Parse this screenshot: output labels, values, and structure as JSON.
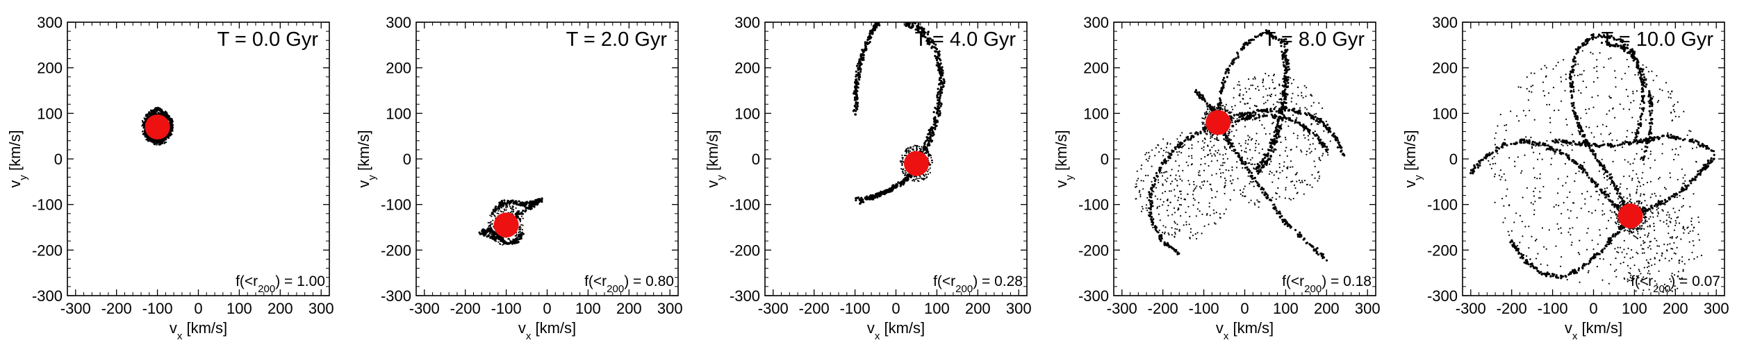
{
  "chart_data": [
    {
      "type": "scatter",
      "time_label": "T = 0.0 Gyr",
      "fraction_prefix": "f(<r",
      "fraction_sub": "200",
      "fraction_suffix": ") = 1.00",
      "xlabel": "v",
      "xlabel_sub": "x",
      "xlabel_unit": "[km/s]",
      "ylabel": "v",
      "ylabel_sub": "y",
      "ylabel_unit": "[km/s]",
      "xlim": [
        -320,
        320
      ],
      "ylim": [
        -300,
        300
      ],
      "ticks": [
        -300,
        -200,
        -100,
        0,
        100,
        200,
        300
      ],
      "ticklabels": [
        "-300",
        "-200",
        "-100",
        "0",
        "100",
        "200",
        "300"
      ],
      "satellite": {
        "x": -100,
        "y": 70,
        "color": "#ee1111"
      },
      "stream": {
        "paths": [
          [
            [
              -100,
              110
            ],
            [
              -80,
              100
            ],
            [
              -65,
              80
            ],
            [
              -70,
              55
            ],
            [
              -90,
              40
            ],
            [
              -115,
              40
            ],
            [
              -130,
              55
            ],
            [
              -130,
              80
            ],
            [
              -115,
              100
            ],
            [
              -100,
              110
            ]
          ],
          [
            [
              -110,
              100
            ],
            [
              -85,
              95
            ],
            [
              -70,
              70
            ],
            [
              -75,
              50
            ],
            [
              -95,
              35
            ],
            [
              -120,
              45
            ],
            [
              -125,
              70
            ],
            [
              -110,
              100
            ]
          ]
        ],
        "cloud": [
          [
            -100,
            70,
            40,
            300
          ]
        ]
      }
    },
    {
      "type": "scatter",
      "time_label": "T = 2.0 Gyr",
      "fraction_prefix": "f(<r",
      "fraction_sub": "200",
      "fraction_suffix": ") = 0.80",
      "xlabel": "v",
      "xlabel_sub": "x",
      "xlabel_unit": "[km/s]",
      "ylabel": "v",
      "ylabel_sub": "y",
      "ylabel_unit": "[km/s]",
      "xlim": [
        -320,
        320
      ],
      "ylim": [
        -300,
        300
      ],
      "ticks": [
        -300,
        -200,
        -100,
        0,
        100,
        200,
        300
      ],
      "ticklabels": [
        "-300",
        "-200",
        "-100",
        "0",
        "100",
        "200",
        "300"
      ],
      "satellite": {
        "x": -100,
        "y": -145,
        "color": "#ee1111"
      },
      "stream": {
        "paths": [
          [
            [
              -135,
              -120
            ],
            [
              -110,
              -95
            ],
            [
              -80,
              -95
            ],
            [
              -55,
              -100
            ],
            [
              -30,
              -95
            ],
            [
              -15,
              -90
            ],
            [
              -40,
              -105
            ],
            [
              -70,
              -120
            ],
            [
              -90,
              -140
            ],
            [
              -105,
              -165
            ],
            [
              -130,
              -175
            ],
            [
              -165,
              -160
            ],
            [
              -140,
              -155
            ],
            [
              -120,
              -170
            ],
            [
              -100,
              -185
            ],
            [
              -75,
              -180
            ],
            [
              -60,
              -165
            ]
          ]
        ],
        "cloud": [
          [
            -100,
            -145,
            45,
            280
          ]
        ]
      }
    },
    {
      "type": "scatter",
      "time_label": "T = 4.0 Gyr",
      "fraction_prefix": "f(<r",
      "fraction_sub": "200",
      "fraction_suffix": ") = 0.28",
      "xlabel": "v",
      "xlabel_sub": "x",
      "xlabel_unit": "[km/s]",
      "ylabel": "v",
      "ylabel_sub": "y",
      "ylabel_unit": "[km/s]",
      "xlim": [
        -320,
        320
      ],
      "ylim": [
        -300,
        300
      ],
      "ticks": [
        -300,
        -200,
        -100,
        0,
        100,
        200,
        300
      ],
      "ticklabels": [
        "-300",
        "-200",
        "-100",
        "0",
        "100",
        "200",
        "300"
      ],
      "satellite": {
        "x": 50,
        "y": -10,
        "color": "#ee1111"
      },
      "stream": {
        "paths": [
          [
            [
              -95,
              110
            ],
            [
              -100,
              150
            ],
            [
              -90,
              210
            ],
            [
              -70,
              260
            ],
            [
              -45,
              300
            ]
          ],
          [
            [
              -100,
              100
            ],
            [
              -95,
              170
            ],
            [
              -80,
              230
            ],
            [
              -55,
              285
            ],
            [
              -35,
              305
            ]
          ],
          [
            [
              20,
              300
            ],
            [
              60,
              280
            ],
            [
              95,
              240
            ],
            [
              110,
              180
            ],
            [
              100,
              110
            ],
            [
              80,
              50
            ],
            [
              55,
              0
            ]
          ],
          [
            [
              30,
              305
            ],
            [
              75,
              280
            ],
            [
              105,
              230
            ],
            [
              115,
              170
            ],
            [
              105,
              100
            ],
            [
              85,
              40
            ],
            [
              60,
              -10
            ]
          ],
          [
            [
              55,
              -10
            ],
            [
              30,
              -40
            ],
            [
              0,
              -60
            ],
            [
              -30,
              -75
            ],
            [
              -60,
              -85
            ],
            [
              -100,
              -90
            ]
          ],
          [
            [
              50,
              -20
            ],
            [
              20,
              -50
            ],
            [
              -15,
              -70
            ],
            [
              -50,
              -80
            ],
            [
              -90,
              -95
            ]
          ]
        ],
        "cloud": [
          [
            50,
            -10,
            40,
            320
          ]
        ]
      }
    },
    {
      "type": "scatter",
      "time_label": "T = 8.0 Gyr",
      "fraction_prefix": "f(<r",
      "fraction_sub": "200",
      "fraction_suffix": ") = 0.18",
      "xlabel": "v",
      "xlabel_sub": "x",
      "xlabel_unit": "[km/s]",
      "ylabel": "v",
      "ylabel_sub": "y",
      "ylabel_unit": "[km/s]",
      "xlim": [
        -320,
        320
      ],
      "ylim": [
        -300,
        300
      ],
      "ticks": [
        -300,
        -200,
        -100,
        0,
        100,
        200,
        300
      ],
      "ticklabels": [
        "-300",
        "-200",
        "-100",
        "0",
        "100",
        "200",
        "300"
      ],
      "satellite": {
        "x": -65,
        "y": 80,
        "color": "#ee1111"
      },
      "stream": {
        "paths": [
          [
            [
              -65,
              80
            ],
            [
              -20,
              95
            ],
            [
              40,
              105
            ],
            [
              100,
              110
            ],
            [
              150,
              100
            ],
            [
              190,
              80
            ],
            [
              220,
              50
            ],
            [
              240,
              10
            ]
          ],
          [
            [
              -60,
              75
            ],
            [
              0,
              90
            ],
            [
              60,
              95
            ],
            [
              120,
              85
            ],
            [
              170,
              55
            ],
            [
              200,
              20
            ]
          ],
          [
            [
              -65,
              80
            ],
            [
              -60,
              140
            ],
            [
              -40,
              200
            ],
            [
              0,
              250
            ],
            [
              50,
              280
            ],
            [
              90,
              260
            ],
            [
              100,
              200
            ],
            [
              95,
              140
            ],
            [
              80,
              70
            ],
            [
              55,
              10
            ],
            [
              30,
              -20
            ]
          ],
          [
            [
              100,
              260
            ],
            [
              105,
              200
            ],
            [
              100,
              130
            ],
            [
              85,
              60
            ],
            [
              60,
              0
            ],
            [
              30,
              -30
            ]
          ],
          [
            [
              -65,
              80
            ],
            [
              -40,
              40
            ],
            [
              -10,
              0
            ],
            [
              20,
              -40
            ],
            [
              60,
              -90
            ],
            [
              100,
              -140
            ],
            [
              150,
              -180
            ],
            [
              200,
              -220
            ]
          ],
          [
            [
              -65,
              80
            ],
            [
              -110,
              60
            ],
            [
              -160,
              30
            ],
            [
              -200,
              -10
            ],
            [
              -230,
              -70
            ],
            [
              -230,
              -130
            ],
            [
              -200,
              -180
            ],
            [
              -160,
              -210
            ]
          ],
          [
            [
              -70,
              95
            ],
            [
              -100,
              130
            ],
            [
              -120,
              150
            ]
          ]
        ],
        "cloud": [
          [
            -65,
            80,
            40,
            260
          ],
          [
            60,
            40,
            150,
            420
          ],
          [
            -150,
            -60,
            120,
            300
          ]
        ]
      }
    },
    {
      "type": "scatter",
      "time_label": "T = 10.0 Gyr",
      "fraction_prefix": "f(<r",
      "fraction_sub": "200",
      "fraction_suffix": ") = 0.07",
      "xlabel": "v",
      "xlabel_sub": "x",
      "xlabel_unit": "[km/s]",
      "ylabel": "v",
      "ylabel_sub": "y",
      "ylabel_unit": "[km/s]",
      "xlim": [
        -320,
        320
      ],
      "ylim": [
        -300,
        300
      ],
      "ticks": [
        -300,
        -200,
        -100,
        0,
        100,
        200,
        300
      ],
      "ticklabels": [
        "-300",
        "-200",
        "-100",
        "0",
        "100",
        "200",
        "300"
      ],
      "satellite": {
        "x": 90,
        "y": -125,
        "color": "#ee1111"
      },
      "stream": {
        "paths": [
          [
            [
              100,
              30
            ],
            [
              120,
              100
            ],
            [
              120,
              170
            ],
            [
              100,
              230
            ],
            [
              60,
              265
            ],
            [
              0,
              270
            ],
            [
              -40,
              240
            ],
            [
              -55,
              180
            ],
            [
              -50,
              110
            ],
            [
              -30,
              60
            ],
            [
              0,
              10
            ],
            [
              40,
              -40
            ],
            [
              70,
              -90
            ],
            [
              90,
              -125
            ]
          ],
          [
            [
              120,
              0
            ],
            [
              140,
              60
            ],
            [
              140,
              130
            ],
            [
              115,
              200
            ],
            [
              75,
              245
            ],
            [
              20,
              255
            ]
          ],
          [
            [
              90,
              -125
            ],
            [
              50,
              -100
            ],
            [
              10,
              -60
            ],
            [
              -30,
              -20
            ],
            [
              -70,
              10
            ],
            [
              -120,
              30
            ],
            [
              -170,
              40
            ],
            [
              -220,
              30
            ],
            [
              -270,
              0
            ],
            [
              -300,
              -30
            ]
          ],
          [
            [
              90,
              -125
            ],
            [
              130,
              -110
            ],
            [
              180,
              -90
            ],
            [
              230,
              -60
            ],
            [
              270,
              -20
            ],
            [
              300,
              10
            ]
          ],
          [
            [
              90,
              -125
            ],
            [
              60,
              -160
            ],
            [
              20,
              -200
            ],
            [
              -30,
              -240
            ],
            [
              -80,
              -260
            ],
            [
              -130,
              -250
            ],
            [
              -170,
              -220
            ],
            [
              -200,
              -180
            ]
          ],
          [
            [
              -100,
              40
            ],
            [
              -50,
              35
            ],
            [
              0,
              30
            ],
            [
              60,
              30
            ],
            [
              120,
              40
            ],
            [
              180,
              50
            ],
            [
              240,
              40
            ],
            [
              290,
              20
            ]
          ]
        ],
        "cloud": [
          [
            90,
            -125,
            40,
            220
          ],
          [
            0,
            -20,
            260,
            520
          ],
          [
            150,
            -180,
            120,
            260
          ]
        ]
      }
    }
  ]
}
